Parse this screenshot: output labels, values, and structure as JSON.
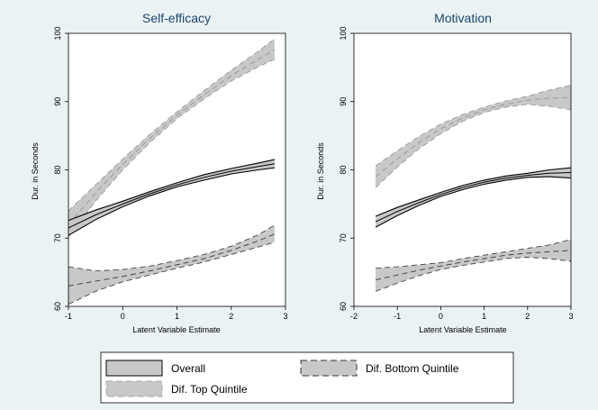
{
  "legend": {
    "overall": "Overall",
    "bottom": "Dif. Bottom Quintile",
    "top": "Dif. Top Quintile"
  },
  "colors": {
    "background": "#eaf2f3",
    "plot_bg": "#ffffff",
    "title": "#1a476f",
    "band_fill": "#c8c8c8",
    "line": "#000000"
  },
  "chart_data": [
    {
      "type": "line",
      "title": "Self-efficacy",
      "xlabel": "Latent Variable Estimate",
      "ylabel": "Dur. in Seconds",
      "xlim": [
        -1,
        3
      ],
      "ylim": [
        60,
        100
      ],
      "xticks": [
        -1,
        0,
        1,
        2,
        3
      ],
      "yticks": [
        60,
        70,
        80,
        90,
        100
      ],
      "grid": false,
      "series": [
        {
          "name": "Dif. Top Quintile",
          "style": "band-dashed",
          "x": [
            -1.0,
            -0.5,
            0.0,
            0.5,
            1.0,
            1.5,
            2.0,
            2.5,
            2.8
          ],
          "y": [
            72.0,
            76.6,
            80.8,
            84.6,
            88.0,
            91.0,
            93.8,
            96.2,
            97.6
          ],
          "lower": [
            70.2,
            75.4,
            80.0,
            84.0,
            87.5,
            90.4,
            93.0,
            95.1,
            96.2
          ],
          "upper": [
            74.0,
            77.8,
            81.6,
            85.2,
            88.5,
            91.6,
            94.6,
            97.4,
            99.2
          ]
        },
        {
          "name": "Overall",
          "style": "band-solid",
          "x": [
            -1.0,
            -0.5,
            0.0,
            0.5,
            1.0,
            1.5,
            2.0,
            2.5,
            2.8
          ],
          "y": [
            71.5,
            73.4,
            75.0,
            76.5,
            77.8,
            78.9,
            79.8,
            80.5,
            80.9
          ],
          "lower": [
            70.4,
            72.7,
            74.6,
            76.2,
            77.5,
            78.5,
            79.4,
            80.0,
            80.3
          ],
          "upper": [
            72.6,
            74.1,
            75.4,
            76.8,
            78.1,
            79.3,
            80.2,
            81.0,
            81.5
          ]
        },
        {
          "name": "Dif. Bottom Quintile",
          "style": "band-dashed",
          "x": [
            -1.0,
            -0.5,
            0.0,
            0.5,
            1.0,
            1.5,
            2.0,
            2.5,
            2.8
          ],
          "y": [
            63.0,
            63.7,
            64.4,
            65.2,
            66.1,
            67.0,
            68.2,
            69.6,
            70.6
          ],
          "lower": [
            60.3,
            62.2,
            63.6,
            64.6,
            65.6,
            66.5,
            67.6,
            68.7,
            69.4
          ],
          "upper": [
            65.8,
            65.2,
            65.4,
            65.9,
            66.7,
            67.6,
            68.8,
            70.5,
            71.9
          ]
        }
      ]
    },
    {
      "type": "line",
      "title": "Motivation",
      "xlabel": "Latent Variable Estimate",
      "ylabel": "Dur. in Seconds",
      "xlim": [
        -2,
        3
      ],
      "ylim": [
        60,
        100
      ],
      "xticks": [
        -2,
        -1,
        0,
        1,
        2,
        3
      ],
      "yticks": [
        60,
        70,
        80,
        90,
        100
      ],
      "grid": false,
      "series": [
        {
          "name": "Dif. Top Quintile",
          "style": "band-dashed",
          "x": [
            -1.5,
            -1.0,
            -0.5,
            0.0,
            0.5,
            1.0,
            1.5,
            2.0,
            2.5,
            3.0
          ],
          "y": [
            79.0,
            81.6,
            84.0,
            86.0,
            87.6,
            88.8,
            89.6,
            90.2,
            90.5,
            90.6
          ],
          "lower": [
            77.4,
            80.4,
            83.1,
            85.3,
            87.1,
            88.4,
            89.2,
            89.6,
            89.3,
            88.8
          ],
          "upper": [
            80.6,
            82.8,
            84.9,
            86.7,
            88.1,
            89.2,
            90.1,
            90.8,
            91.7,
            92.4
          ]
        },
        {
          "name": "Overall",
          "style": "band-solid",
          "x": [
            -1.5,
            -1.0,
            -0.5,
            0.0,
            0.5,
            1.0,
            1.5,
            2.0,
            2.5,
            3.0
          ],
          "y": [
            72.4,
            73.9,
            75.2,
            76.4,
            77.4,
            78.2,
            78.8,
            79.2,
            79.5,
            79.6
          ],
          "lower": [
            71.6,
            73.3,
            74.8,
            76.1,
            77.1,
            77.9,
            78.5,
            78.9,
            79.0,
            78.8
          ],
          "upper": [
            73.2,
            74.5,
            75.6,
            76.7,
            77.7,
            78.5,
            79.1,
            79.5,
            80.0,
            80.3
          ]
        },
        {
          "name": "Dif. Bottom Quintile",
          "style": "band-dashed",
          "x": [
            -1.5,
            -1.0,
            -0.5,
            0.0,
            0.5,
            1.0,
            1.5,
            2.0,
            2.5,
            3.0
          ],
          "y": [
            63.9,
            64.6,
            65.3,
            65.9,
            66.5,
            67.0,
            67.5,
            67.8,
            68.0,
            68.2
          ],
          "lower": [
            62.2,
            63.4,
            64.5,
            65.4,
            66.0,
            66.5,
            67.0,
            67.2,
            67.0,
            66.6
          ],
          "upper": [
            65.6,
            65.8,
            66.1,
            66.4,
            67.0,
            67.5,
            68.0,
            68.5,
            69.0,
            69.8
          ]
        }
      ]
    }
  ]
}
